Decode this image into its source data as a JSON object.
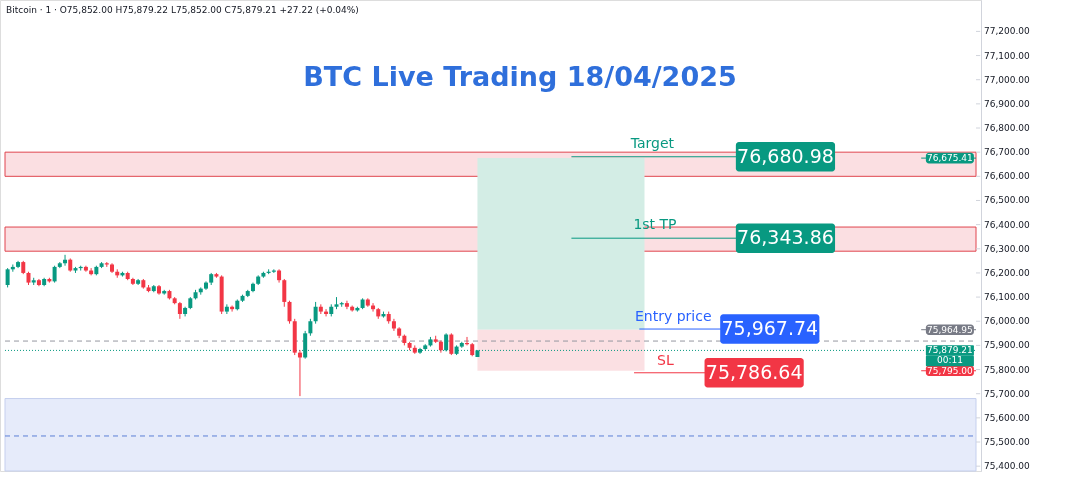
{
  "chart_data": {
    "type": "candlestick",
    "title": "BTC Live Trading 18/04/2025",
    "subtitle": "Bitcoin · 1 · O75,852.00 H75,879.22 L75,852.00 C75,879.21 +27.22 (+0.04%)",
    "categories": [
      null,
      null,
      null,
      null,
      null,
      null,
      null,
      null,
      null,
      null,
      null,
      null,
      null,
      null,
      null,
      null,
      null,
      null,
      null,
      null,
      null,
      null,
      null,
      null,
      null,
      null,
      null,
      null,
      null,
      null,
      null,
      null,
      null,
      null,
      null,
      null,
      null,
      null,
      null,
      null,
      null,
      null,
      null,
      null,
      null,
      null,
      null,
      null,
      null,
      null,
      null,
      null,
      null,
      null,
      null,
      null,
      null,
      null,
      null,
      null,
      null,
      null,
      null,
      null,
      null,
      null,
      null,
      null,
      null,
      null,
      null,
      null,
      null,
      null,
      null,
      null,
      null,
      null,
      null,
      null,
      null,
      null,
      null,
      null,
      null,
      null,
      null,
      null,
      null,
      null,
      null,
      null,
      null,
      null,
      null,
      null,
      null,
      null,
      null,
      null,
      null,
      null,
      null,
      null,
      null,
      null,
      null,
      null,
      null,
      null,
      null,
      null,
      null,
      null,
      null,
      null,
      null,
      null,
      null,
      null,
      null,
      null,
      null,
      null,
      null,
      null,
      null,
      null,
      null,
      null,
      null,
      null,
      null,
      null,
      null,
      null,
      null,
      null,
      null,
      null,
      null,
      null,
      null,
      null,
      null,
      null,
      null,
      null,
      null,
      null,
      null,
      null,
      null,
      null,
      null,
      null,
      null,
      null,
      null,
      null,
      null,
      null,
      null,
      null,
      null,
      null,
      null,
      null,
      null,
      null,
      null,
      null,
      null,
      null,
      null,
      null,
      null,
      null,
      null,
      null,
      null,
      null,
      null,
      null,
      null,
      null
    ],
    "ohlc": [
      [
        76150,
        76220,
        76140,
        76215
      ],
      [
        76215,
        76235,
        76205,
        76225
      ],
      [
        76225,
        76250,
        76220,
        76245
      ],
      [
        76245,
        76250,
        76195,
        76200
      ],
      [
        76200,
        76205,
        76150,
        76160
      ],
      [
        76160,
        76180,
        76150,
        76170
      ],
      [
        76170,
        76175,
        76145,
        76150
      ],
      [
        76150,
        76180,
        76145,
        76175
      ],
      [
        76175,
        76180,
        76160,
        76165
      ],
      [
        76165,
        76230,
        76160,
        76225
      ],
      [
        76225,
        76245,
        76220,
        76240
      ],
      [
        76240,
        76275,
        76230,
        76255
      ],
      [
        76255,
        76260,
        76205,
        76210
      ],
      [
        76210,
        76225,
        76200,
        76220
      ],
      [
        76220,
        76230,
        76210,
        76225
      ],
      [
        76225,
        76230,
        76205,
        76210
      ],
      [
        76210,
        76220,
        76190,
        76195
      ],
      [
        76195,
        76230,
        76190,
        76225
      ],
      [
        76225,
        76245,
        76220,
        76240
      ],
      [
        76240,
        76245,
        76225,
        76235
      ],
      [
        76235,
        76240,
        76200,
        76205
      ],
      [
        76205,
        76215,
        76180,
        76190
      ],
      [
        76190,
        76205,
        76185,
        76200
      ],
      [
        76200,
        76205,
        76170,
        76175
      ],
      [
        76175,
        76180,
        76150,
        76155
      ],
      [
        76155,
        76175,
        76150,
        76170
      ],
      [
        76170,
        76175,
        76135,
        76140
      ],
      [
        76140,
        76150,
        76120,
        76125
      ],
      [
        76125,
        76150,
        76120,
        76145
      ],
      [
        76145,
        76150,
        76110,
        76115
      ],
      [
        76115,
        76130,
        76110,
        76125
      ],
      [
        76125,
        76130,
        76090,
        76095
      ],
      [
        76095,
        76100,
        76070,
        76075
      ],
      [
        76075,
        76080,
        76010,
        76030
      ],
      [
        76030,
        76060,
        76020,
        76055
      ],
      [
        76055,
        76100,
        76050,
        76095
      ],
      [
        76095,
        76130,
        76090,
        76120
      ],
      [
        76120,
        76140,
        76110,
        76135
      ],
      [
        76135,
        76165,
        76130,
        76160
      ],
      [
        76160,
        76200,
        76150,
        76195
      ],
      [
        76195,
        76200,
        76180,
        76185
      ],
      [
        76185,
        76190,
        76030,
        76040
      ],
      [
        76040,
        76070,
        76030,
        76060
      ],
      [
        76060,
        76065,
        76040,
        76050
      ],
      [
        76050,
        76090,
        76045,
        76085
      ],
      [
        76085,
        76110,
        76080,
        76105
      ],
      [
        76105,
        76130,
        76100,
        76125
      ],
      [
        76125,
        76160,
        76120,
        76155
      ],
      [
        76155,
        76190,
        76150,
        76185
      ],
      [
        76185,
        76205,
        76180,
        76200
      ],
      [
        76200,
        76215,
        76195,
        76205
      ],
      [
        76205,
        76215,
        76200,
        76210
      ],
      [
        76210,
        76215,
        76160,
        76170
      ],
      [
        76170,
        76175,
        76060,
        76080
      ],
      [
        76080,
        76085,
        75990,
        76000
      ],
      [
        76000,
        76010,
        75860,
        75870
      ],
      [
        75870,
        75880,
        75690,
        75850
      ],
      [
        75850,
        75960,
        75845,
        75950
      ],
      [
        75950,
        76010,
        75940,
        76000
      ],
      [
        76000,
        76080,
        75990,
        76060
      ],
      [
        76060,
        76070,
        76030,
        76040
      ],
      [
        76040,
        76050,
        76020,
        76030
      ],
      [
        76030,
        76070,
        76020,
        76060
      ],
      [
        76060,
        76100,
        76050,
        76070
      ],
      [
        76070,
        76080,
        76060,
        76075
      ],
      [
        76075,
        76085,
        76050,
        76060
      ],
      [
        76060,
        76065,
        76040,
        76045
      ],
      [
        76045,
        76060,
        76040,
        76055
      ],
      [
        76055,
        76095,
        76050,
        76090
      ],
      [
        76090,
        76095,
        76060,
        76065
      ],
      [
        76065,
        76075,
        76040,
        76050
      ],
      [
        76050,
        76055,
        76010,
        76020
      ],
      [
        76020,
        76040,
        76015,
        76030
      ],
      [
        76030,
        76040,
        75990,
        76000
      ],
      [
        76000,
        76010,
        75960,
        75970
      ],
      [
        75970,
        75975,
        75930,
        75940
      ],
      [
        75940,
        75945,
        75900,
        75910
      ],
      [
        75910,
        75915,
        75880,
        75890
      ],
      [
        75890,
        75900,
        75865,
        75870
      ],
      [
        75870,
        75890,
        75865,
        75885
      ],
      [
        75885,
        75905,
        75880,
        75900
      ],
      [
        75900,
        75935,
        75895,
        75925
      ],
      [
        75925,
        75940,
        75910,
        75915
      ],
      [
        75915,
        75920,
        75870,
        75880
      ],
      [
        75880,
        75950,
        75875,
        75945
      ],
      [
        75945,
        75950,
        75860,
        75865
      ],
      [
        75865,
        75900,
        75860,
        75895
      ],
      [
        75895,
        75915,
        75890,
        75910
      ],
      [
        75910,
        75935,
        75900,
        75905
      ],
      [
        75905,
        75910,
        75855,
        75860
      ],
      [
        75852,
        75879.22,
        75852,
        75879.21
      ],
      null,
      null,
      null,
      null,
      null,
      null,
      null,
      null,
      null,
      null,
      null,
      null,
      null,
      null,
      null,
      null,
      null,
      null,
      null,
      null,
      null,
      null,
      null,
      null,
      null,
      null,
      null,
      null,
      null,
      null,
      null,
      null,
      null,
      null,
      null,
      null,
      null,
      null,
      null,
      null,
      null,
      null,
      null,
      null,
      null,
      null,
      null,
      null,
      null,
      null,
      null,
      null,
      null,
      null,
      null,
      null,
      null,
      null,
      null,
      null,
      null,
      null,
      null,
      null,
      null,
      null,
      null,
      null,
      null,
      null,
      null,
      null,
      null,
      null,
      null,
      null,
      null,
      null,
      null,
      null,
      null,
      null,
      null,
      null,
      null,
      null,
      null,
      null,
      null,
      null,
      null,
      null,
      null,
      null,
      null
    ],
    "ylim": [
      75380,
      77330
    ],
    "yticks": [
      {
        "value": 75400,
        "label": "75,400.00"
      },
      {
        "value": 75500,
        "label": "75,500.00"
      },
      {
        "value": 75600,
        "label": "75,600.00"
      },
      {
        "value": 75700,
        "label": "75,700.00"
      },
      {
        "value": 75800,
        "label": "75,800.00"
      },
      {
        "value": 75900,
        "label": "75,900.00"
      },
      {
        "value": 76000,
        "label": "76,000.00"
      },
      {
        "value": 76100,
        "label": "76,100.00"
      },
      {
        "value": 76200,
        "label": "76,200.00"
      },
      {
        "value": 76300,
        "label": "76,300.00"
      },
      {
        "value": 76400,
        "label": "76,400.00"
      },
      {
        "value": 76500,
        "label": "76,500.00"
      },
      {
        "value": 76600,
        "label": "76,600.00"
      },
      {
        "value": 76700,
        "label": "76,700.00"
      },
      {
        "value": 76800,
        "label": "76,800.00"
      },
      {
        "value": 76900,
        "label": "76,900.00"
      },
      {
        "value": 77000,
        "label": "77,000.00"
      },
      {
        "value": 77100,
        "label": "77,100.00"
      },
      {
        "value": 77200,
        "label": "77,200.00"
      }
    ],
    "bands": [
      {
        "axis": "y",
        "from": 76600,
        "to": 76700,
        "color": "#fbdfe2"
      },
      {
        "axis": "y",
        "from": 76290,
        "to": 76390,
        "color": "#fbdfe2"
      },
      {
        "axis": "y",
        "from": 75380,
        "to": 75680,
        "color": "#e6ebfa"
      },
      {
        "axis": "y",
        "from": 75964.95,
        "to": 76675.41,
        "color": "#d3ede5"
      },
      {
        "axis": "y",
        "from": 75795.0,
        "to": 75964.95,
        "color": "#fbe0e3"
      }
    ],
    "ref_lines": [
      {
        "axis": "y",
        "value": 75525,
        "color": "#5b7fd6",
        "line_style": "dashed"
      },
      {
        "axis": "y",
        "value": 75918,
        "color": "#9598a1",
        "line_style": "dashed"
      },
      {
        "axis": "y",
        "value": 75879.21,
        "color": "#089981",
        "line_style": "dotted"
      },
      {
        "axis": "y",
        "value": 76680.98,
        "label": "76,680.98",
        "color": "#089981",
        "line_style": "solid"
      },
      {
        "axis": "y",
        "value": 76343.86,
        "label": "76,343.86",
        "color": "#089981",
        "line_style": "solid"
      },
      {
        "axis": "y",
        "value": 75967.74,
        "label": "75,967.74",
        "color": "#2962ff",
        "line_style": "solid"
      },
      {
        "axis": "y",
        "value": 75786.64,
        "label": "75,786.64",
        "color": "#f23645",
        "line_style": "solid"
      },
      {
        "axis": "y",
        "value": 76675.41,
        "label": "76,675.41",
        "color": "#089981",
        "line_style": "solid"
      },
      {
        "axis": "y",
        "value": 75964.95,
        "label": "75,964.95",
        "color": "#787b86",
        "line_style": "solid"
      },
      {
        "axis": "y",
        "value": 75795.0,
        "label": "75,795.00",
        "color": "#f23645",
        "line_style": "solid"
      }
    ],
    "annotations": [
      {
        "text": "Target",
        "y": 76680.98
      },
      {
        "text": "1st TP",
        "y": 76343.86
      },
      {
        "text": "Entry price",
        "y": 75967.74
      },
      {
        "text": "SL",
        "y": 75786.64
      },
      {
        "text": "75,879.21",
        "y": 75879.21
      },
      {
        "text": "00:11",
        "y": 75879.21
      }
    ],
    "grid": false
  }
}
